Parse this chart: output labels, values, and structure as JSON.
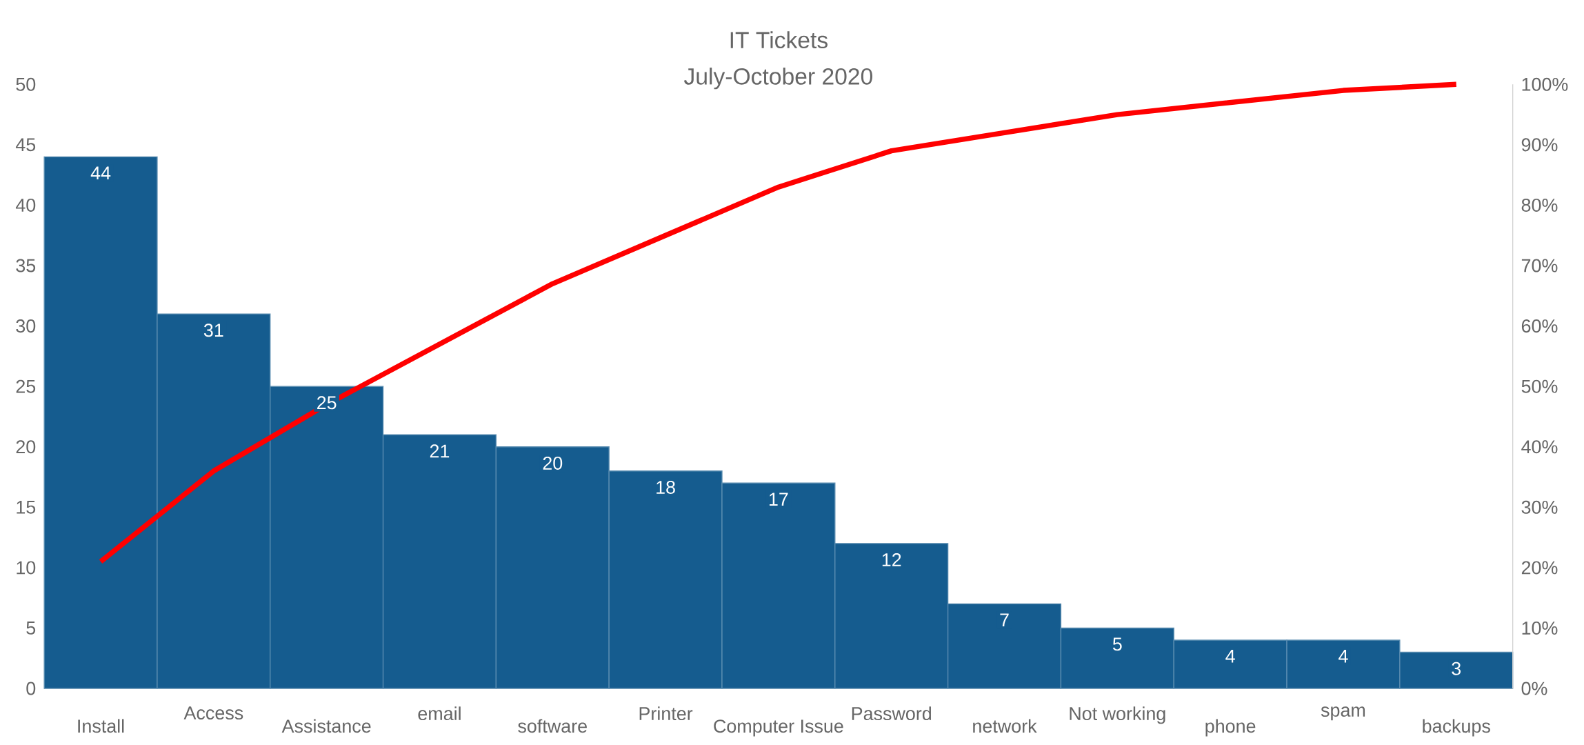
{
  "chart_data": {
    "type": "bar",
    "title": "IT Tickets",
    "subtitle": "July-October 2020",
    "categories": [
      "Install",
      "Access",
      "Assistance",
      "email",
      "software",
      "Printer",
      "Computer Issue",
      "Password",
      "network",
      "Not working",
      "phone",
      "spam",
      "backups"
    ],
    "series": [
      {
        "color": "#155c8f",
        "values": [
          44,
          31,
          25,
          21,
          20,
          18,
          17,
          12,
          7,
          5,
          4,
          4,
          3
        ],
        "value_labels": [
          "44",
          "31",
          "25",
          "21",
          "20",
          "18",
          "17",
          "12",
          "7",
          "5",
          "4",
          "4",
          "3"
        ]
      },
      {
        "type": "line",
        "axis": "y2",
        "color": "#ff0000",
        "values": [
          21,
          36,
          47,
          57,
          67,
          75,
          83,
          89,
          92,
          95,
          97,
          99,
          100
        ]
      }
    ],
    "ylim": [
      0,
      50
    ],
    "yticks": [
      0,
      5,
      10,
      15,
      20,
      25,
      30,
      35,
      40,
      45,
      50
    ],
    "y2lim": [
      0,
      100
    ],
    "y2ticks": [
      {
        "value": 0,
        "label": "0%"
      },
      {
        "value": 10,
        "label": "10%"
      },
      {
        "value": 20,
        "label": "20%"
      },
      {
        "value": 30,
        "label": "30%"
      },
      {
        "value": 40,
        "label": "40%"
      },
      {
        "value": 50,
        "label": "50%"
      },
      {
        "value": 60,
        "label": "60%"
      },
      {
        "value": 70,
        "label": "70%"
      },
      {
        "value": 80,
        "label": "80%"
      },
      {
        "value": 90,
        "label": "90%"
      },
      {
        "value": 100,
        "label": "100%"
      }
    ]
  }
}
